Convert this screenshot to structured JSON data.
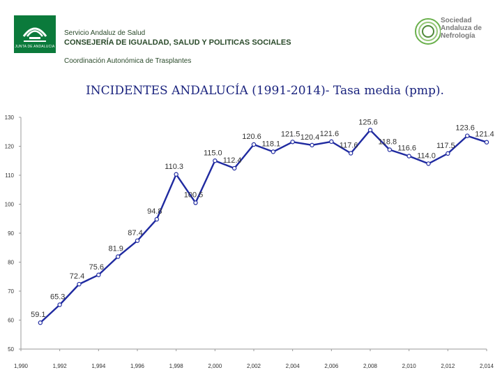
{
  "header": {
    "logo_left_caption": "JUNTA DE ANDALUCIA",
    "org_line1": "Servicio Andaluz de Salud",
    "org_line2": "CONSEJERÍA DE IGUALDAD, SALUD Y POLITICAS SOCIALES",
    "org_line3": "Coordinación Autonómica de Trasplantes",
    "logo_right_line1": "Sociedad",
    "logo_right_line2": "Andaluza de",
    "logo_right_line3": "Nefrología"
  },
  "colors": {
    "line": "#1f2aa0",
    "header_green": "#0b7a3b",
    "title": "#1a237e"
  },
  "chart_data": {
    "type": "line",
    "title": "INCIDENTES ANDALUCÍA (1991-2014)- Tasa media (pmp).",
    "x": [
      1991,
      1992,
      1993,
      1994,
      1995,
      1996,
      1997,
      1998,
      1999,
      2000,
      2001,
      2002,
      2003,
      2004,
      2005,
      2006,
      2007,
      2008,
      2009,
      2010,
      2011,
      2012,
      2013,
      2014
    ],
    "values": [
      59.1,
      65.3,
      72.4,
      75.6,
      81.9,
      87.4,
      94.8,
      110.3,
      100.5,
      115.0,
      112.4,
      120.6,
      118.1,
      121.5,
      120.4,
      121.6,
      117.6,
      125.6,
      118.8,
      116.6,
      114.0,
      117.5,
      123.6,
      121.4
    ],
    "labels": [
      "59.1",
      "65.3",
      "72.4",
      "75.6",
      "81.9",
      "87.4",
      "94.8",
      "110.3",
      "100.5",
      "115.0",
      "112.4",
      "120.6",
      "118.1",
      "121.5",
      "120.4",
      "121.6",
      "117.6",
      "125.6",
      "118.8",
      "116.6",
      "114.0",
      "117.5",
      "123.6",
      "121.4"
    ],
    "xlim": [
      1990,
      2014
    ],
    "ylim": [
      50,
      130
    ],
    "xticks": [
      1990,
      1992,
      1994,
      1996,
      1998,
      2000,
      2002,
      2004,
      2006,
      2008,
      2010,
      2012,
      2014
    ],
    "xtick_labels": [
      "1,990",
      "1,992",
      "1,994",
      "1,996",
      "1,998",
      "2,000",
      "2,002",
      "2,004",
      "2,006",
      "2,008",
      "2,010",
      "2,012",
      "2,014"
    ],
    "yticks": [
      50,
      60,
      70,
      80,
      90,
      100,
      110,
      120,
      130
    ],
    "ytick_labels": [
      "50",
      "60",
      "70",
      "80",
      "90",
      "100",
      "110",
      "120",
      "130"
    ],
    "grid": false,
    "xlabel": "",
    "ylabel": ""
  }
}
